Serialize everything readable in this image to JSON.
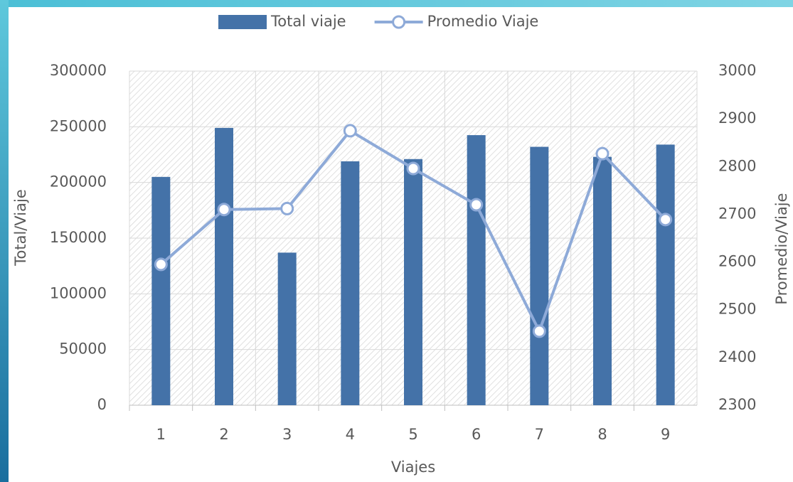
{
  "chart_data": {
    "type": "bar_line",
    "categories": [
      "1",
      "2",
      "3",
      "4",
      "5",
      "6",
      "7",
      "8",
      "9"
    ],
    "series": [
      {
        "name": "Total viaje",
        "type": "bar",
        "color": "#4472a8",
        "values": [
          205000,
          249000,
          137000,
          219000,
          221000,
          242500,
          232000,
          223000,
          234000
        ]
      },
      {
        "name": "Promedio Viaje",
        "type": "line",
        "axis": "y2",
        "color": "#8eaad8",
        "values": [
          2595,
          2710,
          2712,
          2875,
          2796,
          2720,
          2455,
          2827,
          2689
        ]
      }
    ],
    "xlabel": "Viajes",
    "ylabel": "Total/Viaje",
    "y2label": "Promedio/Viaje",
    "ylim": [
      0,
      300000
    ],
    "yticks": [
      0,
      50000,
      100000,
      150000,
      200000,
      250000,
      300000
    ],
    "y2lim": [
      2300,
      3000
    ],
    "y2ticks": [
      2300,
      2400,
      2500,
      2600,
      2700,
      2800,
      2900,
      3000
    ],
    "grid": true,
    "legend": "top"
  }
}
